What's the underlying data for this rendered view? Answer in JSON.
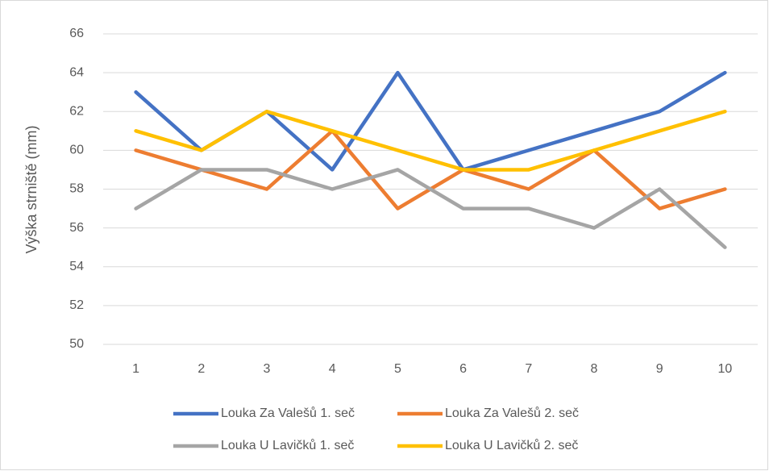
{
  "chart_data": {
    "type": "line",
    "y_label": "Výška strniště (mm)",
    "categories": [
      "1",
      "2",
      "3",
      "4",
      "5",
      "6",
      "7",
      "8",
      "9",
      "10"
    ],
    "series": [
      {
        "name": "Louka Za Valešů 1. seč",
        "color": "#4472c4",
        "values": [
          63,
          60,
          62,
          59,
          64,
          59,
          60,
          61,
          62,
          64
        ]
      },
      {
        "name": "Louka Za Valešů 2. seč",
        "color": "#ed7d31",
        "values": [
          60,
          59,
          58,
          61,
          57,
          59,
          58,
          60,
          57,
          58
        ]
      },
      {
        "name": "Louka U Lavičků 1. seč",
        "color": "#a5a5a5",
        "values": [
          57,
          59,
          59,
          58,
          59,
          57,
          57,
          56,
          58,
          55
        ]
      },
      {
        "name": "Louka U Lavičků 2. seč",
        "color": "#ffc000",
        "values": [
          61,
          60,
          62,
          61,
          60,
          59,
          59,
          60,
          61,
          62
        ]
      }
    ],
    "ylim": [
      50,
      66
    ],
    "yticks": [
      50,
      52,
      54,
      56,
      58,
      60,
      62,
      64,
      66
    ],
    "grid": true,
    "legend": "bottom"
  }
}
